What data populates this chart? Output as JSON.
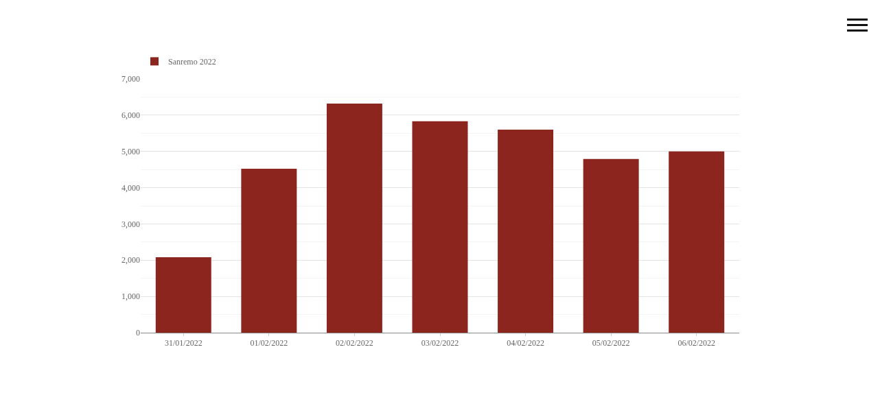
{
  "chart_data": {
    "type": "bar",
    "categories": [
      "31/01/2022",
      "01/02/2022",
      "02/02/2022",
      "03/02/2022",
      "04/02/2022",
      "05/02/2022",
      "06/02/2022"
    ],
    "series": [
      {
        "name": "Sanremo 2022",
        "color": "#8b251e",
        "values": [
          2080,
          4520,
          6320,
          5830,
          5600,
          4790,
          5000
        ]
      }
    ],
    "ylim": [
      0,
      7000
    ],
    "yticks": [
      {
        "value": 0,
        "label": "0"
      },
      {
        "value": 1000,
        "label": "1,000"
      },
      {
        "value": 2000,
        "label": "2,000"
      },
      {
        "value": 3000,
        "label": "3,000"
      },
      {
        "value": 4000,
        "label": "4,000"
      },
      {
        "value": 5000,
        "label": "5,000"
      },
      {
        "value": 6000,
        "label": "6,000"
      },
      {
        "value": 7000,
        "label": "7,000"
      }
    ],
    "grid": "y",
    "legend": "top left"
  }
}
